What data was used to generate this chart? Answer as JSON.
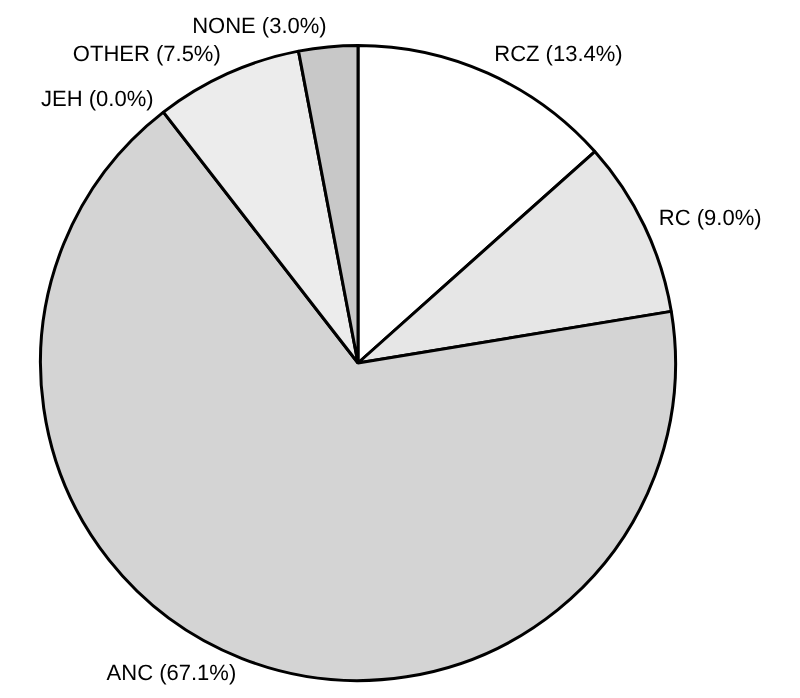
{
  "chart_data": {
    "type": "pie",
    "categories": [
      "RCZ",
      "RC",
      "ANC",
      "JEH",
      "OTHER",
      "NONE"
    ],
    "values": [
      13.4,
      9.0,
      67.1,
      0.0,
      7.5,
      3.0
    ],
    "value_labels": [
      "(13.4%)",
      "(9.0%)",
      "(67.1%)",
      "(0.0%)",
      "(7.5%)",
      "(3.0%)"
    ],
    "colors": [
      "#ffffff",
      "#e6e6e6",
      "#d4d4d4",
      "#bbbbbb",
      "#ececec",
      "#c8c8c8"
    ],
    "legend": false
  }
}
